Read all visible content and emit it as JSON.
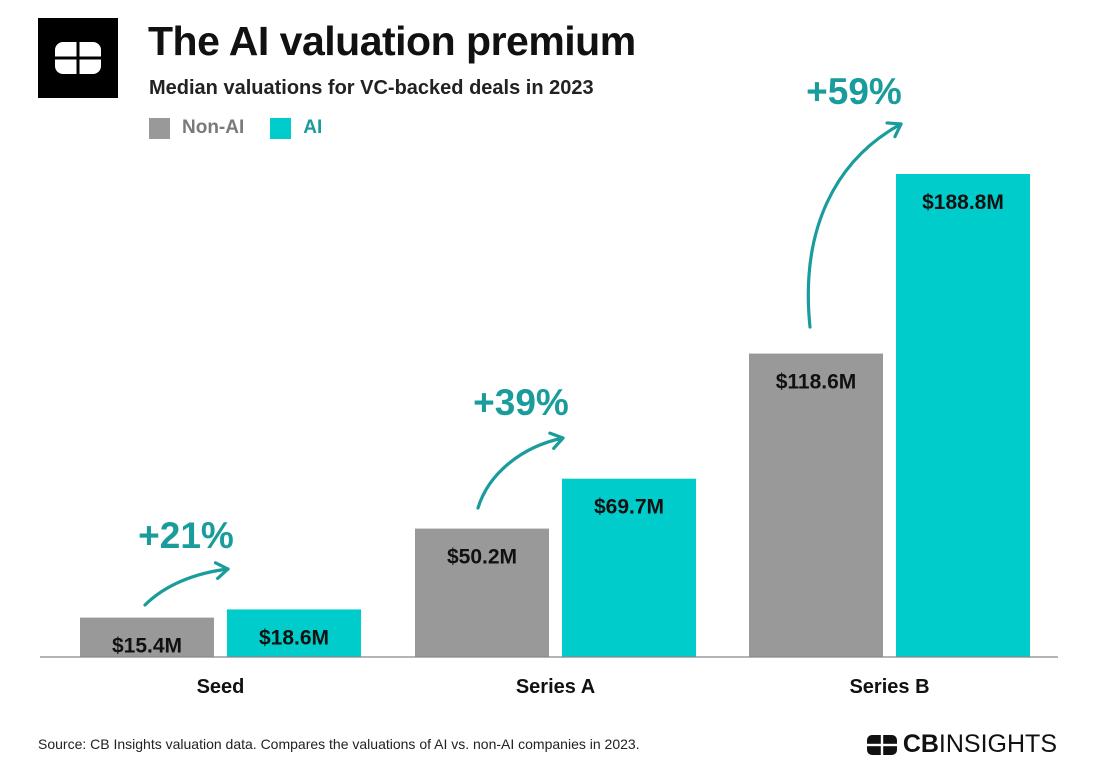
{
  "header": {
    "title": "The AI valuation premium",
    "subtitle": "Median valuations for VC-backed deals in 2023"
  },
  "chart_data": {
    "type": "bar",
    "categories": [
      "Seed",
      "Series A",
      "Series B"
    ],
    "series": [
      {
        "name": "Non-AI",
        "color": "#999999",
        "values": [
          15.4,
          50.2,
          118.6
        ],
        "labels": [
          "$15.4M",
          "$50.2M",
          "$118.6M"
        ]
      },
      {
        "name": "AI",
        "color": "#00CCCC",
        "values": [
          18.6,
          69.7,
          188.8
        ],
        "labels": [
          "$18.6M",
          "$69.7M",
          "$188.8M"
        ]
      }
    ],
    "annotations": [
      "+21%",
      "+39%",
      "+59%"
    ],
    "annotation_color": "#1A9C9C",
    "title": "The AI valuation premium",
    "subtitle": "Median valuations for VC-backed deals in 2023",
    "ylim": [
      0,
      188.8
    ],
    "grid": false,
    "legend": "top-left"
  },
  "footer": {
    "source": "Source: CB Insights valuation data. Compares the valuations of AI vs. non-AI companies in 2023.",
    "brand_cb": "CB",
    "brand_insights": "INSIGHTS"
  },
  "icons": {
    "logo": "cb-insights-logo-icon",
    "arrow": "curved-arrow-icon"
  }
}
